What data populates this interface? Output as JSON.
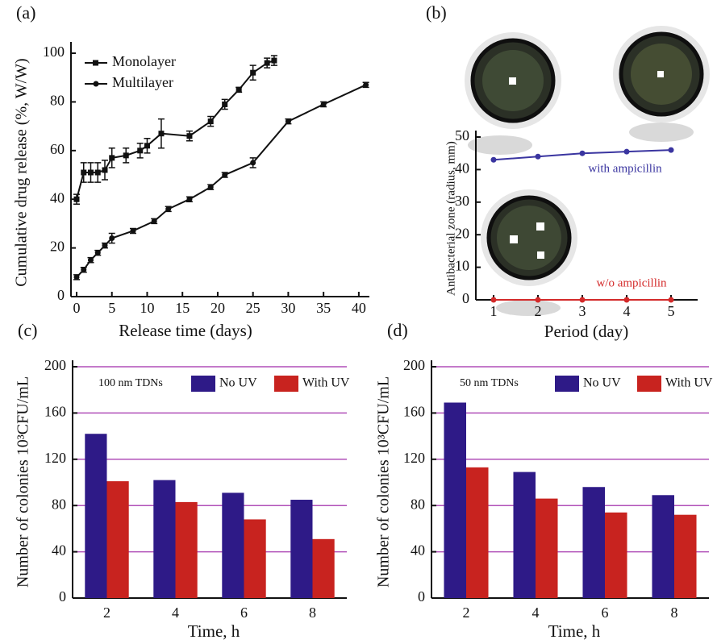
{
  "chart_data": [
    {
      "type": "line",
      "panel_label": "(a)",
      "xlabel": "Release time (days)",
      "ylabel": "Cumulative drug release (%, W/W)",
      "xlim": [
        -0.8,
        41.5
      ],
      "ylim": [
        0,
        102
      ],
      "xticks": [
        0,
        5,
        10,
        15,
        20,
        25,
        30,
        35,
        40
      ],
      "yticks": [
        0,
        20,
        40,
        60,
        80,
        100
      ],
      "legend": "upper left",
      "series": [
        {
          "name": "Monolayer",
          "color": "#111111",
          "marker": "square",
          "x": [
            0,
            1,
            2,
            3,
            4,
            5,
            7,
            9,
            10,
            12,
            16,
            19,
            21,
            23,
            25,
            27,
            28
          ],
          "values": [
            40,
            51,
            51,
            51,
            52,
            57,
            58,
            60,
            62,
            67,
            66,
            72,
            79,
            85,
            92,
            96,
            97
          ],
          "errors": [
            2,
            4,
            4,
            4,
            4,
            4,
            3,
            3,
            3,
            6,
            2,
            2,
            2,
            1,
            3,
            2,
            2
          ]
        },
        {
          "name": "Multilayer",
          "color": "#111111",
          "marker": "circle",
          "x": [
            0,
            1,
            2,
            3,
            4,
            5,
            8,
            11,
            13,
            16,
            19,
            21,
            25,
            30,
            35,
            41
          ],
          "values": [
            8,
            11,
            15,
            18,
            21,
            24,
            27,
            31,
            36,
            40,
            45,
            50,
            55,
            72,
            79,
            87
          ],
          "errors": [
            1,
            1,
            1,
            1,
            1,
            2,
            1,
            1,
            1,
            1,
            1,
            1,
            2,
            1,
            1,
            1
          ]
        }
      ]
    },
    {
      "type": "line",
      "panel_label": "(b)",
      "xlabel": "Period (day)",
      "ylabel": "Antibacterial zone (radius, mm)",
      "xlim": [
        0.6,
        5.6
      ],
      "ylim": [
        0,
        50
      ],
      "xticks": [
        1,
        2,
        3,
        4,
        5
      ],
      "yticks": [
        0,
        10,
        20,
        30,
        40,
        50
      ],
      "x": [
        1,
        2,
        3,
        4,
        5
      ],
      "series": [
        {
          "name": "with ampicillin",
          "color": "#3a35a0",
          "marker": "circle",
          "values": [
            43,
            44,
            45,
            45.5,
            46
          ]
        },
        {
          "name": "w/o ampicillin",
          "color": "#d42a2a",
          "marker": "circle",
          "values": [
            0,
            0,
            0,
            0,
            0
          ]
        }
      ]
    },
    {
      "type": "bar",
      "panel_label": "(c)",
      "annotation": "100 nm TDNs",
      "xlabel": "Time, h",
      "ylabel": "Number of colonies 10³CFU/mL",
      "categories": [
        "2",
        "4",
        "6",
        "8"
      ],
      "ylim": [
        0,
        200
      ],
      "yticks": [
        0,
        40,
        80,
        120,
        160,
        200
      ],
      "grid": true,
      "series": [
        {
          "name": "No UV",
          "color": "#2e1a87",
          "values": [
            142,
            102,
            91,
            85
          ]
        },
        {
          "name": "With UV",
          "color": "#c8231f",
          "values": [
            101,
            83,
            68,
            51
          ]
        }
      ]
    },
    {
      "type": "bar",
      "panel_label": "(d)",
      "annotation": "50 nm TDNs",
      "xlabel": "Time, h",
      "ylabel": "Number of colonies 10³CFU/mL",
      "categories": [
        "2",
        "4",
        "6",
        "8"
      ],
      "ylim": [
        0,
        200
      ],
      "yticks": [
        0,
        40,
        80,
        120,
        160,
        200
      ],
      "grid": true,
      "series": [
        {
          "name": "No UV",
          "color": "#2e1a87",
          "values": [
            169,
            109,
            96,
            89
          ]
        },
        {
          "name": "With UV",
          "color": "#c8231f",
          "values": [
            113,
            86,
            74,
            72
          ]
        }
      ]
    }
  ]
}
